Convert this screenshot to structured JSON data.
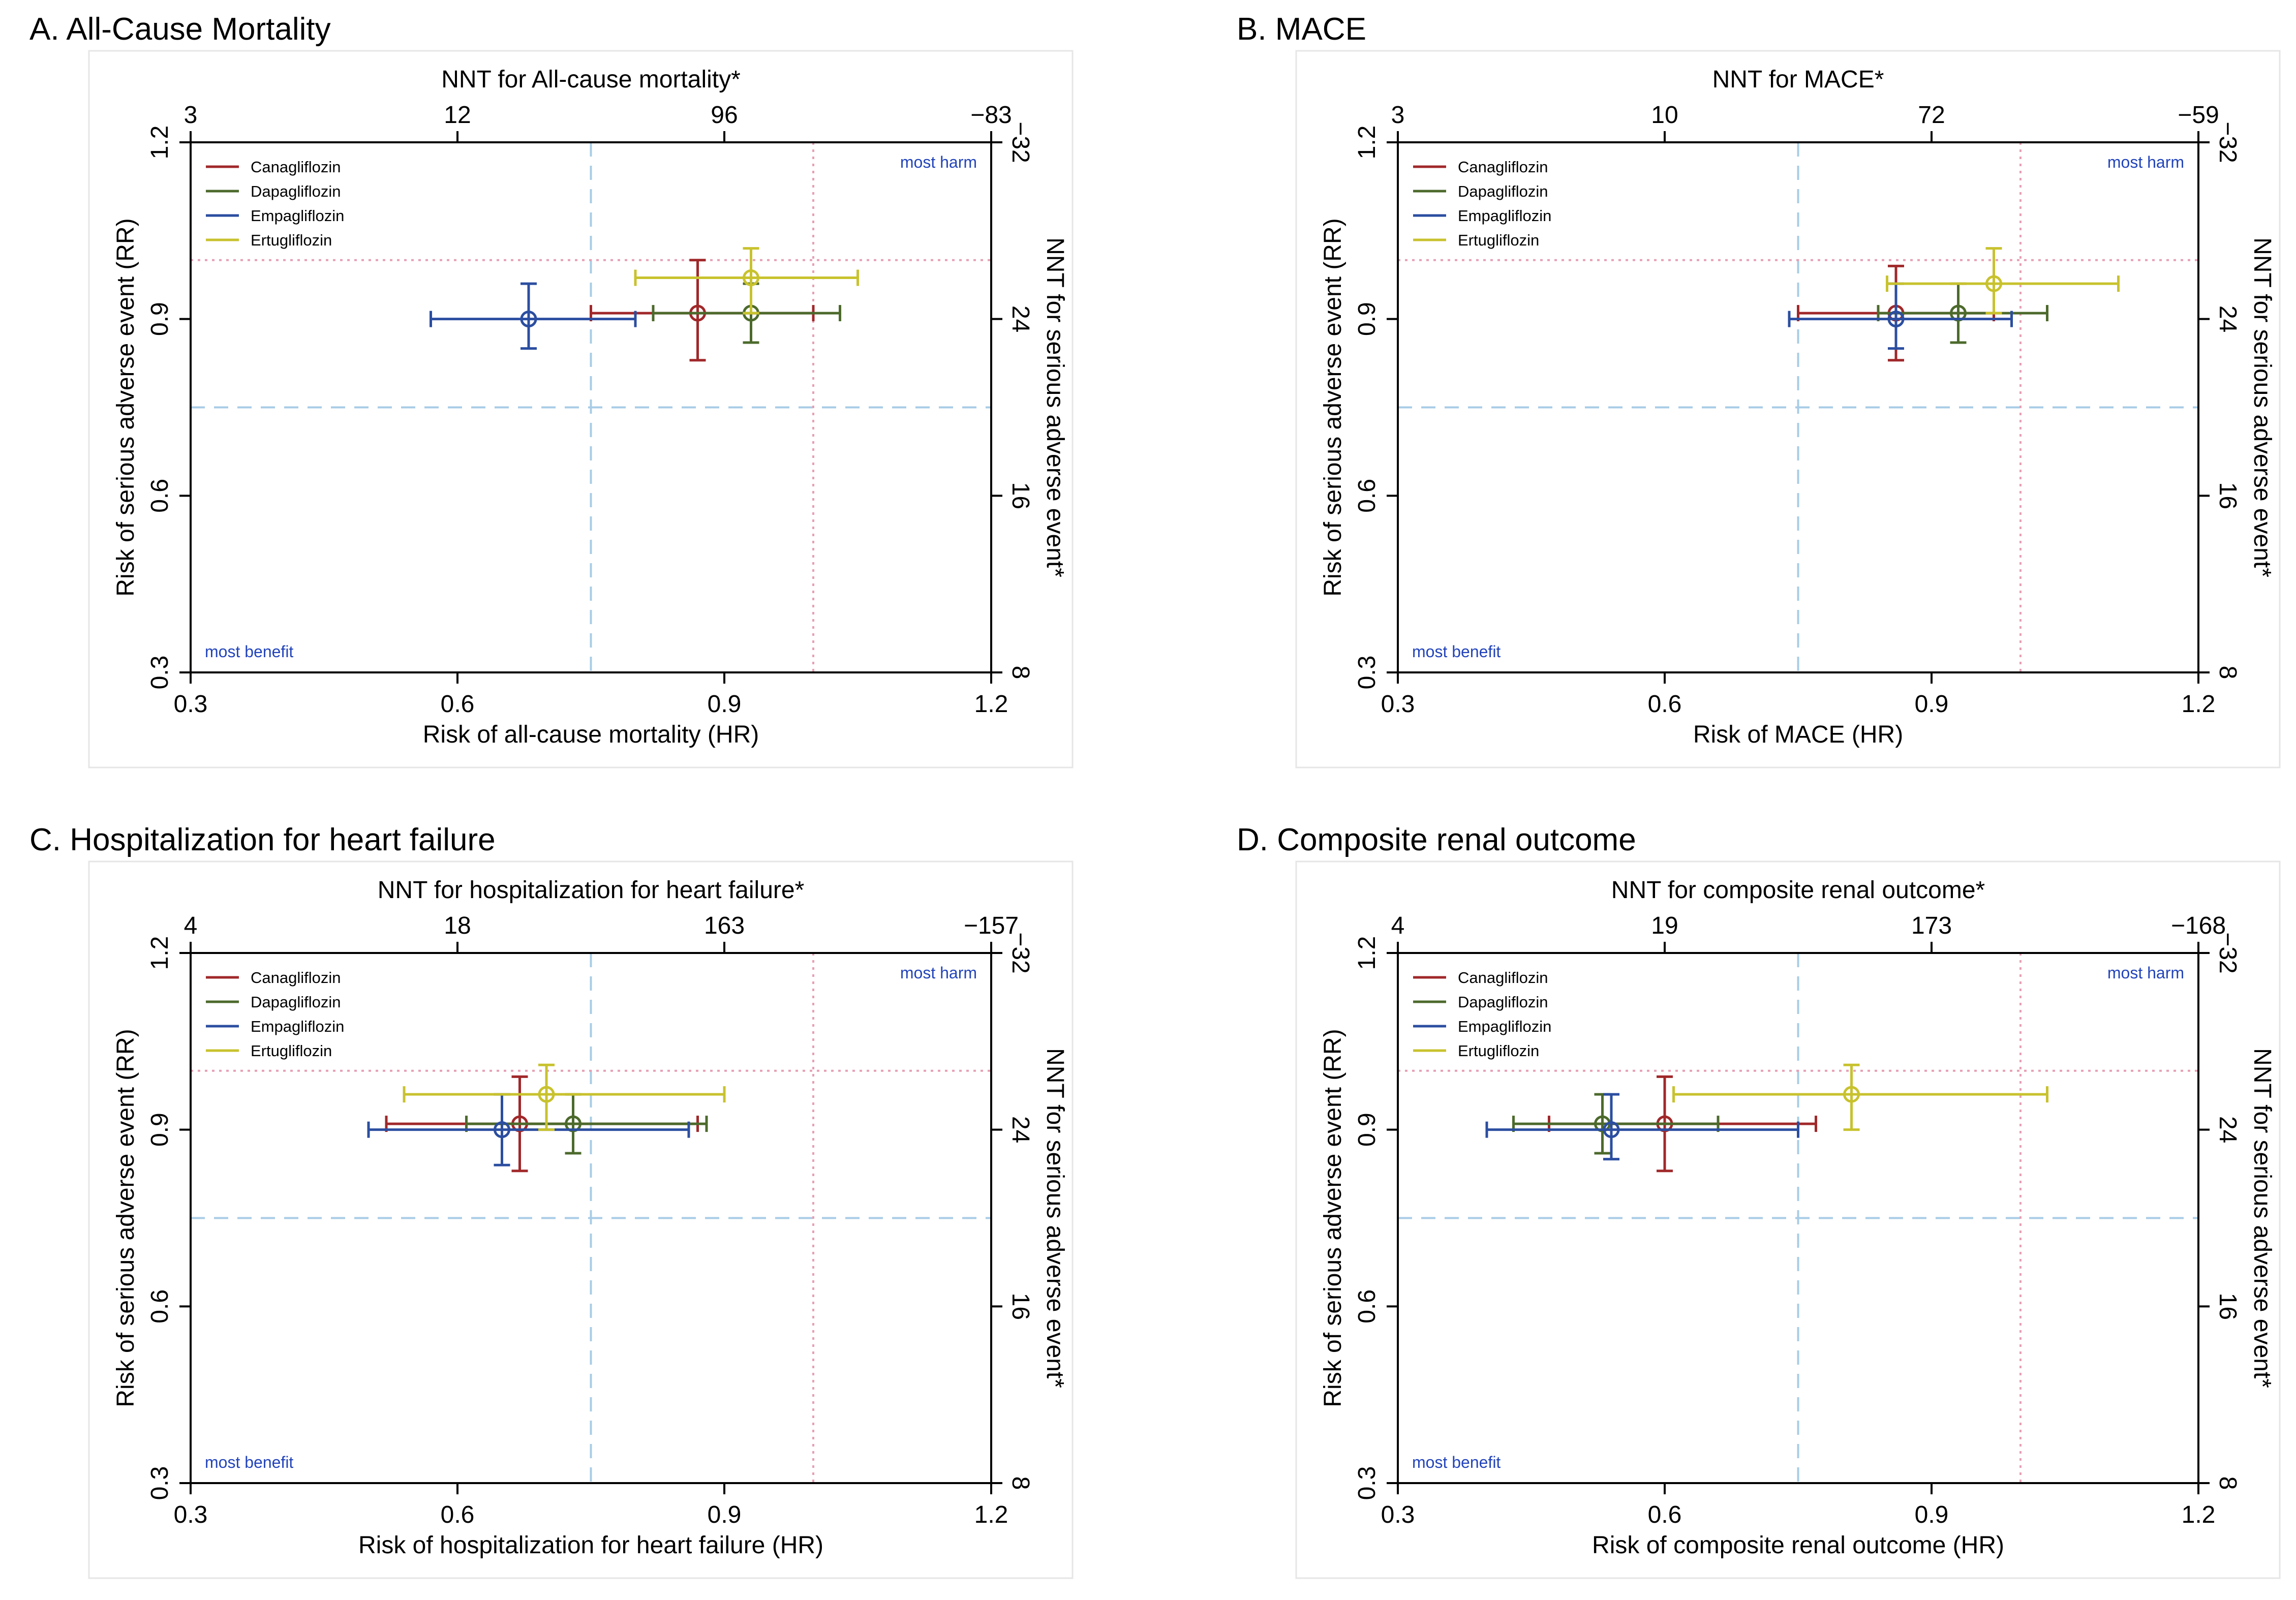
{
  "colors": {
    "canagliflozin": "#a0282a",
    "dapagliflozin": "#4c6a2c",
    "empagliflozin": "#2b4ea0",
    "ertugliflozin": "#c8c22e",
    "reference_blue": "#a8cce6",
    "reference_red": "#e6a0b4",
    "corner_label": "#2244bb",
    "axis": "#000000",
    "panel_border": "#e6e6e6"
  },
  "legend_labels": [
    "Canagliflozin",
    "Dapagliflozin",
    "Empagliflozin",
    "Ertugliflozin"
  ],
  "corner_labels": {
    "top_right": "most harm",
    "bottom_left": "most benefit"
  },
  "chart_data": [
    {
      "type": "scatter",
      "title": "A. All-Cause Mortality",
      "xlabel": "Risk of all-cause mortality (HR)",
      "ylabel": "Risk of serious adverse event (RR)",
      "top_axis_label": "NNT for All-cause mortality*",
      "right_axis_label": "NNT for serious adverse event*",
      "xlim": [
        0.3,
        1.2
      ],
      "ylim": [
        0.3,
        1.2
      ],
      "xticks": [
        "0.3",
        "0.6",
        "0.9",
        "1.2"
      ],
      "yticks": [
        "0.3",
        "0.6",
        "0.9",
        "1.2"
      ],
      "top_ticks": [
        "3",
        "12",
        "96",
        "−83"
      ],
      "right_ticks": [
        "8",
        "16",
        "24",
        "−32"
      ],
      "ref_blue": {
        "x": 0.75,
        "y": 0.75
      },
      "ref_red": {
        "x": 1.0,
        "y": 1.0
      },
      "series": [
        {
          "name": "Canagliflozin",
          "x": 0.87,
          "x_low": 0.75,
          "x_high": 1.0,
          "y": 0.91,
          "y_low": 0.83,
          "y_high": 1.0
        },
        {
          "name": "Dapagliflozin",
          "x": 0.93,
          "x_low": 0.82,
          "x_high": 1.03,
          "y": 0.91,
          "y_low": 0.86,
          "y_high": 0.96
        },
        {
          "name": "Empagliflozin",
          "x": 0.68,
          "x_low": 0.57,
          "x_high": 0.8,
          "y": 0.9,
          "y_low": 0.85,
          "y_high": 0.96
        },
        {
          "name": "Ertugliflozin",
          "x": 0.93,
          "x_low": 0.8,
          "x_high": 1.05,
          "y": 0.97,
          "y_low": 0.91,
          "y_high": 1.02
        }
      ]
    },
    {
      "type": "scatter",
      "title": "B. MACE",
      "xlabel": "Risk of MACE (HR)",
      "ylabel": "Risk of serious adverse event (RR)",
      "top_axis_label": "NNT for MACE*",
      "right_axis_label": "NNT for serious adverse event*",
      "xlim": [
        0.3,
        1.2
      ],
      "ylim": [
        0.3,
        1.2
      ],
      "xticks": [
        "0.3",
        "0.6",
        "0.9",
        "1.2"
      ],
      "yticks": [
        "0.3",
        "0.6",
        "0.9",
        "1.2"
      ],
      "top_ticks": [
        "3",
        "10",
        "72",
        "−59"
      ],
      "right_ticks": [
        "8",
        "16",
        "24",
        "−32"
      ],
      "ref_blue": {
        "x": 0.75,
        "y": 0.75
      },
      "ref_red": {
        "x": 1.0,
        "y": 1.0
      },
      "series": [
        {
          "name": "Canagliflozin",
          "x": 0.86,
          "x_low": 0.75,
          "x_high": 0.97,
          "y": 0.91,
          "y_low": 0.83,
          "y_high": 0.99
        },
        {
          "name": "Dapagliflozin",
          "x": 0.93,
          "x_low": 0.84,
          "x_high": 1.03,
          "y": 0.91,
          "y_low": 0.86,
          "y_high": 0.96
        },
        {
          "name": "Empagliflozin",
          "x": 0.86,
          "x_low": 0.74,
          "x_high": 0.99,
          "y": 0.9,
          "y_low": 0.85,
          "y_high": 0.96
        },
        {
          "name": "Ertugliflozin",
          "x": 0.97,
          "x_low": 0.85,
          "x_high": 1.11,
          "y": 0.96,
          "y_low": 0.91,
          "y_high": 1.02
        }
      ]
    },
    {
      "type": "scatter",
      "title": "C. Hospitalization for heart failure",
      "xlabel": "Risk of hospitalization for heart failure (HR)",
      "ylabel": "Risk of serious adverse event (RR)",
      "top_axis_label": "NNT for hospitalization for heart failure*",
      "right_axis_label": "NNT for serious adverse event*",
      "xlim": [
        0.3,
        1.2
      ],
      "ylim": [
        0.3,
        1.2
      ],
      "xticks": [
        "0.3",
        "0.6",
        "0.9",
        "1.2"
      ],
      "yticks": [
        "0.3",
        "0.6",
        "0.9",
        "1.2"
      ],
      "top_ticks": [
        "4",
        "18",
        "163",
        "−157"
      ],
      "right_ticks": [
        "8",
        "16",
        "24",
        "−32"
      ],
      "ref_blue": {
        "x": 0.75,
        "y": 0.75
      },
      "ref_red": {
        "x": 1.0,
        "y": 1.0
      },
      "series": [
        {
          "name": "Canagliflozin",
          "x": 0.67,
          "x_low": 0.52,
          "x_high": 0.87,
          "y": 0.91,
          "y_low": 0.83,
          "y_high": 0.99
        },
        {
          "name": "Dapagliflozin",
          "x": 0.73,
          "x_low": 0.61,
          "x_high": 0.88,
          "y": 0.91,
          "y_low": 0.86,
          "y_high": 0.96
        },
        {
          "name": "Empagliflozin",
          "x": 0.65,
          "x_low": 0.5,
          "x_high": 0.86,
          "y": 0.9,
          "y_low": 0.84,
          "y_high": 0.96
        },
        {
          "name": "Ertugliflozin",
          "x": 0.7,
          "x_low": 0.54,
          "x_high": 0.9,
          "y": 0.96,
          "y_low": 0.9,
          "y_high": 1.01
        }
      ]
    },
    {
      "type": "scatter",
      "title": "D. Composite renal outcome",
      "xlabel": "Risk of composite renal outcome (HR)",
      "ylabel": "Risk of serious adverse event (RR)",
      "top_axis_label": "NNT for composite renal outcome*",
      "right_axis_label": "NNT for serious adverse event*",
      "xlim": [
        0.3,
        1.2
      ],
      "ylim": [
        0.3,
        1.2
      ],
      "xticks": [
        "0.3",
        "0.6",
        "0.9",
        "1.2"
      ],
      "yticks": [
        "0.3",
        "0.6",
        "0.9",
        "1.2"
      ],
      "top_ticks": [
        "4",
        "19",
        "173",
        "−168"
      ],
      "right_ticks": [
        "8",
        "16",
        "24",
        "−32"
      ],
      "ref_blue": {
        "x": 0.75,
        "y": 0.75
      },
      "ref_red": {
        "x": 1.0,
        "y": 1.0
      },
      "series": [
        {
          "name": "Canagliflozin",
          "x": 0.6,
          "x_low": 0.47,
          "x_high": 0.77,
          "y": 0.91,
          "y_low": 0.83,
          "y_high": 0.99
        },
        {
          "name": "Dapagliflozin",
          "x": 0.53,
          "x_low": 0.43,
          "x_high": 0.66,
          "y": 0.91,
          "y_low": 0.86,
          "y_high": 0.96
        },
        {
          "name": "Empagliflozin",
          "x": 0.54,
          "x_low": 0.4,
          "x_high": 0.75,
          "y": 0.9,
          "y_low": 0.85,
          "y_high": 0.96
        },
        {
          "name": "Ertugliflozin",
          "x": 0.81,
          "x_low": 0.61,
          "x_high": 1.03,
          "y": 0.96,
          "y_low": 0.9,
          "y_high": 1.01
        }
      ]
    }
  ]
}
